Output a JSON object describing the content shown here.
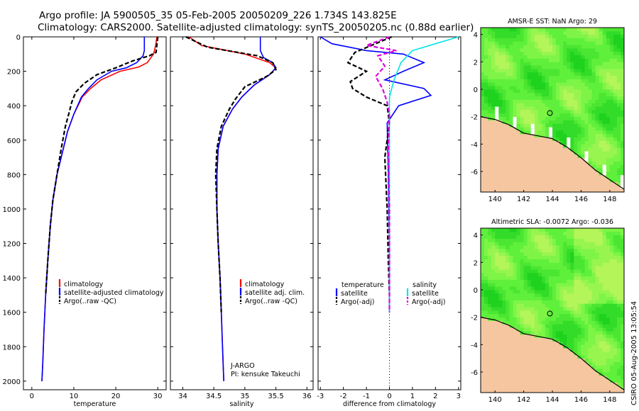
{
  "title": {
    "line1": "Argo profile: JA 5900505_35 05-Feb-2005 20050209_226 1.734S 143.825E",
    "line2": "Climatology: CARS2000. Satellite-adjusted climatology: synTS_20050205.nc (0.88d earlier)"
  },
  "footer_stamp": "CSIRO 05-Aug-2005 13:05:54",
  "colors": {
    "climatology": "#ff0000",
    "satellite": "#0000ff",
    "argo": "#000000",
    "salinity_satellite": "#00e5e5",
    "salinity_argo": "#e000e0",
    "land": "#f5c6a0",
    "no_data": "#ffffff"
  },
  "chart_data": [
    {
      "type": "line",
      "id": "temperature",
      "xlabel": "temperature",
      "xticks": [
        0,
        10,
        20,
        30
      ],
      "yticks": [
        0,
        200,
        400,
        600,
        800,
        1000,
        1200,
        1400,
        1600,
        1800,
        2000
      ],
      "xlim": [
        -2,
        32
      ],
      "ylim": [
        2050,
        0
      ],
      "legend": [
        "climatology",
        "satellite-adjusted climatology",
        "Argo(..raw -QC)"
      ],
      "series": [
        {
          "name": "climatology",
          "color": "#ff0000",
          "style": "solid",
          "x": [
            29.8,
            29.5,
            29.0,
            27.5,
            25.5,
            21.0,
            16.5,
            14.0,
            12.0,
            10.0,
            8.5,
            7.0,
            6.0,
            5.0,
            4.4,
            3.8,
            3.3,
            2.9,
            2.6,
            2.4
          ],
          "y": [
            0,
            50,
            100,
            150,
            175,
            200,
            250,
            300,
            350,
            450,
            550,
            700,
            800,
            950,
            1100,
            1300,
            1500,
            1700,
            1900,
            2000
          ]
        },
        {
          "name": "satellite-adjusted climatology",
          "color": "#0000ff",
          "style": "solid",
          "x": [
            26.8,
            26.8,
            26.5,
            25.0,
            22.5,
            19.0,
            15.5,
            13.5,
            11.8,
            10.0,
            8.5,
            7.0,
            6.0,
            5.0,
            4.4,
            3.8,
            3.3,
            2.9,
            2.6,
            2.4
          ],
          "y": [
            0,
            80,
            110,
            150,
            180,
            200,
            250,
            300,
            350,
            450,
            550,
            700,
            800,
            950,
            1100,
            1300,
            1500,
            1700,
            1900,
            2000
          ]
        },
        {
          "name": "Argo(..raw -QC)",
          "color": "#000000",
          "style": "dashed",
          "x": [
            30.0,
            29.6,
            28.0,
            24.0,
            20.0,
            15.5,
            12.5,
            10.5,
            9.5,
            9.0,
            8.0,
            7.0,
            6.0,
            5.0,
            4.4,
            3.8,
            3.3
          ],
          "y": [
            0,
            90,
            110,
            140,
            180,
            220,
            270,
            320,
            380,
            430,
            520,
            650,
            800,
            950,
            1100,
            1300,
            1500
          ]
        }
      ]
    },
    {
      "type": "line",
      "id": "salinity",
      "xlabel": "salinity",
      "xticks": [
        34,
        34.5,
        35,
        35.5,
        36
      ],
      "xlim": [
        33.8,
        36.1
      ],
      "ylim": [
        2050,
        0
      ],
      "legend": [
        "climatology",
        "satellite adj. clim.",
        "Argo(..raw -QC)"
      ],
      "annotation": [
        "J-ARGO",
        "PI: kensuke Takeuchi"
      ],
      "series": [
        {
          "name": "climatology",
          "color": "#ff0000",
          "style": "solid",
          "x": [
            34.1,
            34.3,
            35.0,
            35.4,
            35.5,
            35.4,
            35.15,
            34.95,
            34.8,
            34.65,
            34.57,
            34.55,
            34.55,
            34.57,
            34.6,
            34.62,
            34.64,
            34.66
          ],
          "y": [
            0,
            50,
            100,
            150,
            180,
            220,
            280,
            350,
            420,
            520,
            650,
            800,
            1000,
            1200,
            1400,
            1600,
            1800,
            2000
          ]
        },
        {
          "name": "satellite adj. clim.",
          "color": "#0000ff",
          "style": "solid",
          "x": [
            35.25,
            35.25,
            35.3,
            35.45,
            35.5,
            35.4,
            35.15,
            34.95,
            34.8,
            34.65,
            34.57,
            34.55,
            34.55,
            34.57,
            34.6,
            34.62,
            34.64,
            34.66
          ],
          "y": [
            0,
            80,
            120,
            150,
            180,
            220,
            280,
            350,
            420,
            520,
            650,
            800,
            1000,
            1200,
            1400,
            1600,
            1800,
            2000
          ]
        },
        {
          "name": "Argo(..raw -QC)",
          "color": "#000000",
          "style": "dashed",
          "x": [
            34.05,
            34.4,
            35.2,
            35.45,
            35.5,
            35.35,
            35.0,
            34.85,
            34.75,
            34.62,
            34.55,
            34.53,
            34.55,
            34.57,
            34.6,
            34.62
          ],
          "y": [
            0,
            60,
            110,
            150,
            190,
            230,
            290,
            360,
            420,
            520,
            650,
            800,
            1000,
            1200,
            1400,
            1600
          ]
        }
      ]
    },
    {
      "type": "line",
      "id": "difference",
      "xlabel": "difference from climatology",
      "xticks": [
        -3,
        -2,
        -1,
        0,
        1,
        2,
        3
      ],
      "xlim": [
        -3.1,
        3.1
      ],
      "ylim": [
        2050,
        0
      ],
      "legend_left_title": "temperature",
      "legend_right_title": "salinity",
      "legend": [
        "satellite",
        "Argo(-adj)",
        "satellite",
        "Argo(-adj)"
      ],
      "series": [
        {
          "name": "satellite",
          "group": "temperature",
          "color": "#0000ff",
          "style": "solid",
          "x": [
            -3.0,
            -2.5,
            -1.0,
            0.6,
            1.5,
            0.6,
            -0.2,
            1.5,
            1.8,
            0.4,
            -0.1,
            -0.05,
            0.0,
            0.0,
            0.0
          ],
          "y": [
            0,
            40,
            80,
            100,
            150,
            200,
            250,
            300,
            340,
            400,
            500,
            800,
            1200,
            1500,
            1600
          ]
        },
        {
          "name": "Argo(-adj)",
          "group": "temperature",
          "color": "#000000",
          "style": "dashed",
          "x": [
            0.1,
            -1.5,
            -1.8,
            -1.0,
            -1.7,
            -1.6,
            -1.0,
            -0.1,
            0.0,
            -0.2,
            -0.1,
            -0.05,
            0.0
          ],
          "y": [
            0,
            90,
            150,
            200,
            260,
            300,
            350,
            400,
            500,
            700,
            1000,
            1300,
            1500
          ]
        },
        {
          "name": "satellite",
          "group": "salinity",
          "color": "#00e5e5",
          "style": "solid",
          "x": [
            3.0,
            2.0,
            1.0,
            0.5,
            0.2,
            0.0,
            0.0,
            0.0,
            0.0,
            0.0
          ],
          "y": [
            0,
            40,
            80,
            150,
            250,
            350,
            500,
            800,
            1200,
            1600
          ]
        },
        {
          "name": "Argo(-adj)",
          "group": "salinity",
          "color": "#e000e0",
          "style": "dashed",
          "x": [
            0.0,
            -1.0,
            0.3,
            -0.5,
            -0.2,
            -0.6,
            -0.3,
            -0.1,
            0.0,
            -0.05,
            0.0,
            0.0
          ],
          "y": [
            0,
            50,
            80,
            110,
            170,
            230,
            300,
            380,
            450,
            650,
            1000,
            1600
          ]
        }
      ]
    },
    {
      "type": "heatmap",
      "id": "sst_map",
      "title": "AMSR-E SST: NaN Argo: 29",
      "xticks": [
        140,
        142,
        144,
        146,
        148
      ],
      "yticks": [
        4,
        2,
        0,
        -2,
        -4,
        -6
      ],
      "xlim": [
        139,
        149
      ],
      "ylim": [
        -7.5,
        4.5
      ],
      "profile_marker": {
        "lon": 143.825,
        "lat": -1.734
      }
    },
    {
      "type": "heatmap",
      "id": "sla_map",
      "title": "Altimetric SLA: -0.0072 Argo: -0.036",
      "xticks": [
        140,
        142,
        144,
        146,
        148
      ],
      "yticks": [
        4,
        2,
        0,
        -2,
        -4,
        -6
      ],
      "xlim": [
        139,
        149
      ],
      "ylim": [
        -7.5,
        4.5
      ],
      "profile_marker": {
        "lon": 143.825,
        "lat": -1.734
      }
    }
  ]
}
